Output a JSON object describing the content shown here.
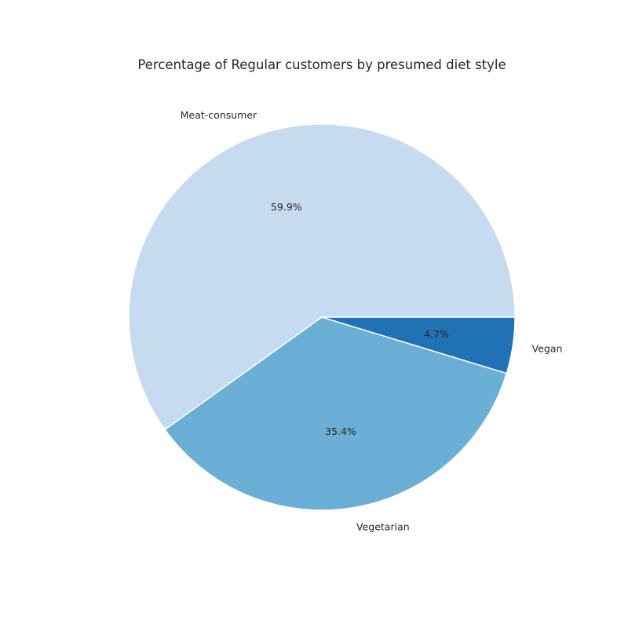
{
  "chart_data": {
    "type": "pie",
    "title": "Percentage of Regular customers by presumed diet style",
    "start_angle_deg": 0,
    "direction": "counterclockwise",
    "slices": [
      {
        "label": "Meat-consumer",
        "value": 59.9,
        "pct_label": "59.9%",
        "color": "#c6dbef"
      },
      {
        "label": "Vegetarian",
        "value": 35.4,
        "pct_label": "35.4%",
        "color": "#6baed6"
      },
      {
        "label": "Vegan",
        "value": 4.7,
        "pct_label": "4.7%",
        "color": "#2171b5"
      }
    ]
  }
}
